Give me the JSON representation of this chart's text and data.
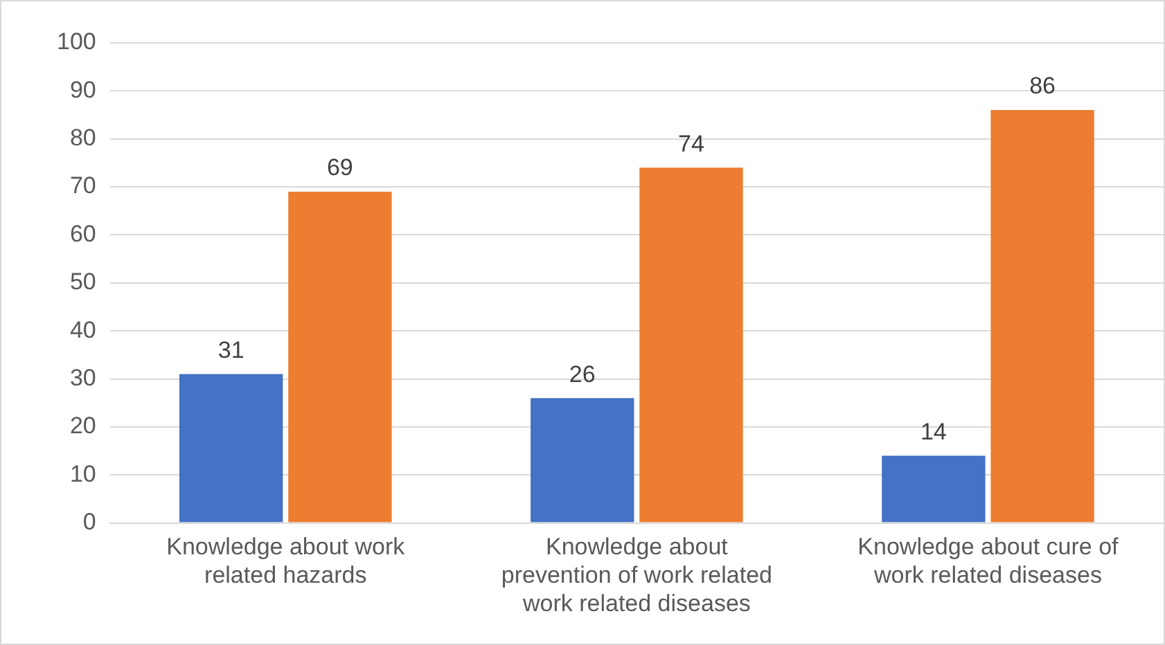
{
  "chart_data": {
    "type": "bar",
    "categories": [
      "Knowledge about work related hazards",
      "Knowledge about prevention of work related work related diseases",
      "Knowledge about cure of work related diseases"
    ],
    "series": [
      {
        "color": "#4472c4",
        "values": [
          31,
          26,
          14
        ]
      },
      {
        "color": "#ed7d31",
        "values": [
          69,
          74,
          86
        ]
      }
    ],
    "ylim": [
      0,
      100
    ],
    "yticks": [
      0,
      10,
      20,
      30,
      40,
      50,
      60,
      70,
      80,
      90,
      100
    ],
    "grid": "y",
    "legend": false,
    "data_labels": true
  }
}
